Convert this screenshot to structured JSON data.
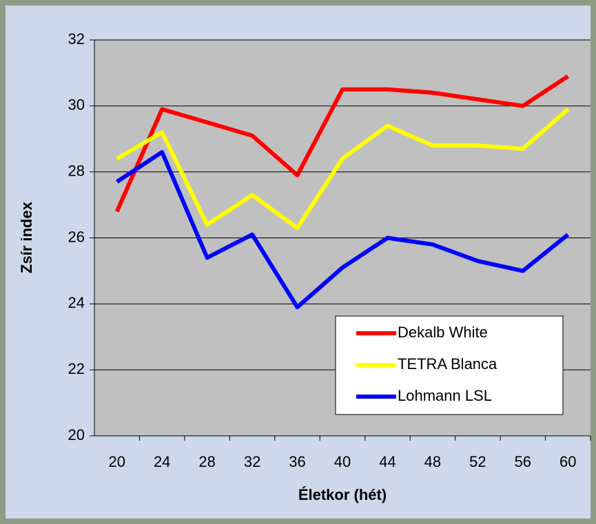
{
  "chart_data": {
    "type": "line",
    "x_label": "Életkor (hét)",
    "y_label": "Zsír index",
    "categories": [
      "20",
      "24",
      "28",
      "32",
      "36",
      "40",
      "44",
      "48",
      "52",
      "56",
      "60"
    ],
    "series": [
      {
        "name": "Dekalb White",
        "color": "#ff0000",
        "values": [
          26.8,
          29.9,
          29.5,
          29.1,
          27.9,
          30.5,
          30.5,
          30.4,
          30.2,
          30.0,
          30.9
        ]
      },
      {
        "name": "TETRA Blanca",
        "color": "#ffff00",
        "values": [
          28.4,
          29.2,
          26.4,
          27.3,
          26.3,
          28.4,
          29.4,
          28.8,
          28.8,
          28.7,
          29.9
        ]
      },
      {
        "name": "Lohmann LSL",
        "color": "#0000ff",
        "values": [
          27.7,
          28.6,
          25.4,
          26.1,
          23.9,
          25.1,
          26.0,
          25.8,
          25.3,
          25.0,
          26.1
        ]
      }
    ],
    "ylim": [
      20,
      32
    ],
    "yticks": [
      20,
      22,
      24,
      26,
      28,
      30,
      32
    ],
    "grid": true,
    "legend": "lower right"
  }
}
